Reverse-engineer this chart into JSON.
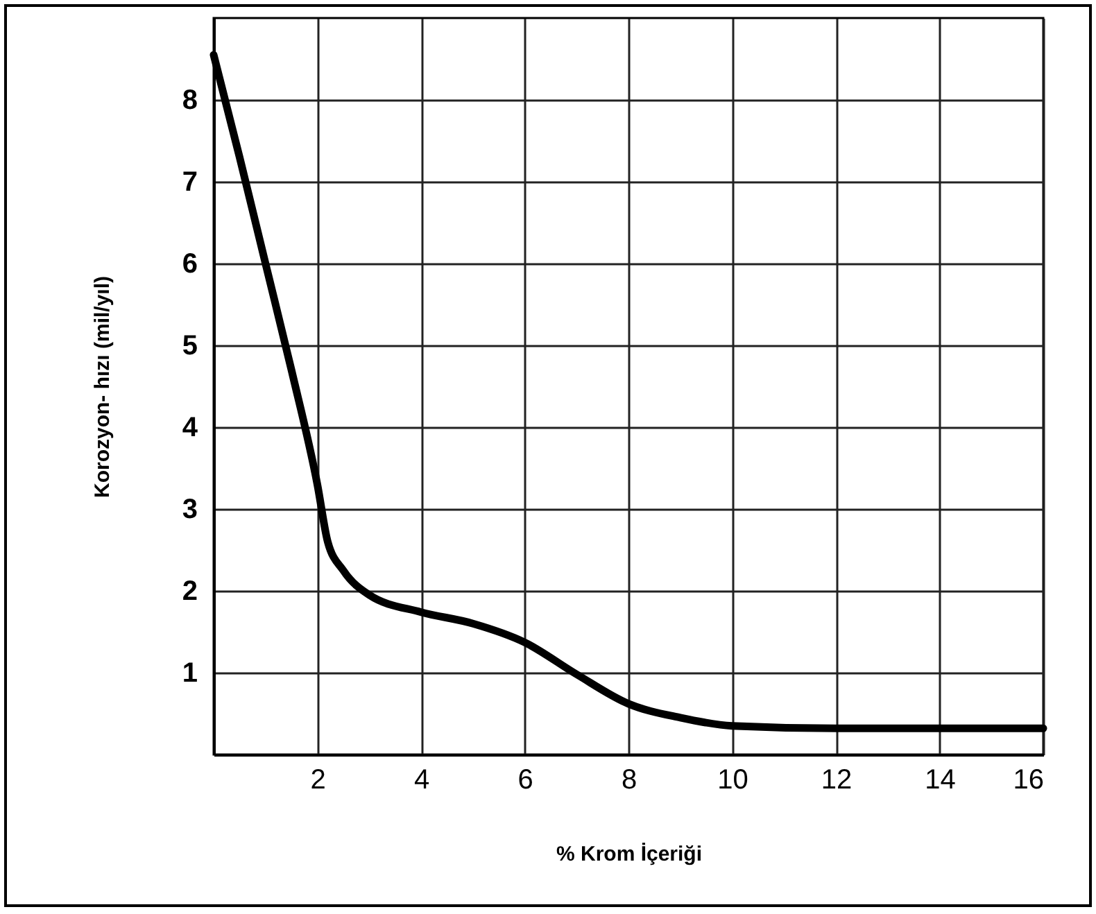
{
  "chart_data": {
    "type": "line",
    "xlabel": "% Krom İçeriği",
    "ylabel": "Korozyon- hızı (mil/yıl)",
    "x": [
      0,
      0.5,
      1,
      1.5,
      2,
      2.2,
      2.5,
      3,
      4,
      5,
      6,
      7,
      8,
      9,
      10,
      12,
      14,
      16
    ],
    "series": [
      {
        "color": "#000000",
        "values": [
          8.55,
          7.3,
          6.0,
          4.7,
          3.3,
          2.6,
          2.25,
          1.95,
          1.74,
          1.6,
          1.37,
          0.98,
          0.62,
          0.45,
          0.35,
          0.32,
          0.32,
          0.32
        ]
      }
    ],
    "xlim": [
      0,
      16
    ],
    "xticks": [
      2,
      4,
      6,
      8,
      10,
      12,
      14,
      16
    ],
    "ylim": [
      0,
      9
    ],
    "yticks": [
      1,
      2,
      3,
      4,
      5,
      6,
      7,
      8
    ],
    "grid": true,
    "marker": "none",
    "line_style": "solid"
  }
}
